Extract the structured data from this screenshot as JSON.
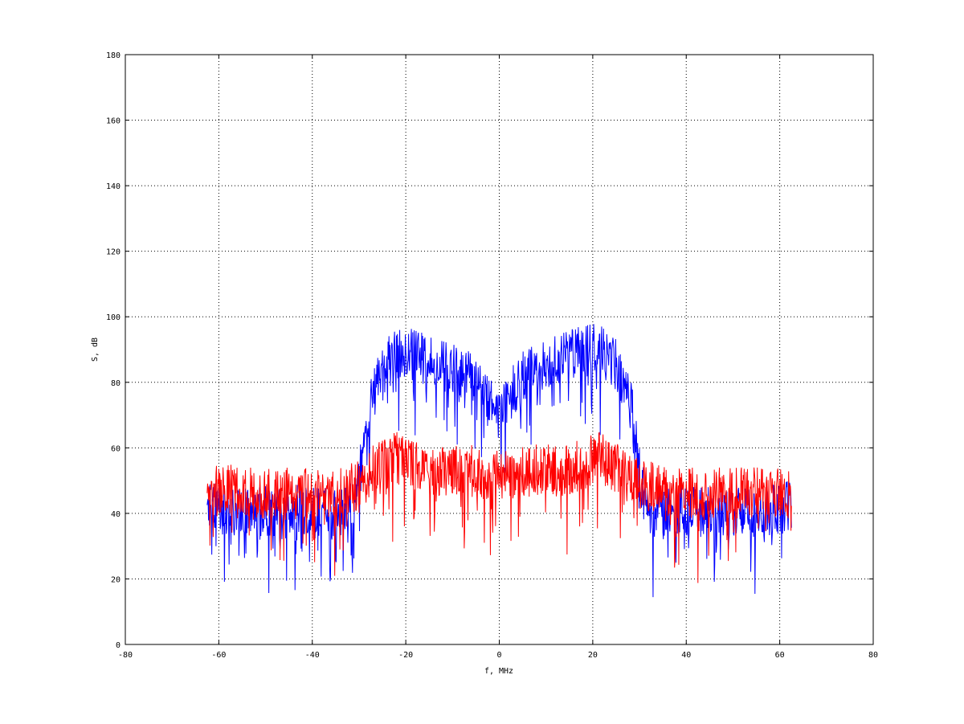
{
  "chart_data": {
    "type": "line",
    "title": "",
    "xlabel": "f, MHz",
    "ylabel": "S, dB",
    "xlim": [
      -80,
      80
    ],
    "ylim": [
      0,
      180
    ],
    "x_ticks": [
      -80,
      -60,
      -40,
      -20,
      0,
      20,
      40,
      60,
      80
    ],
    "y_ticks": [
      0,
      20,
      40,
      60,
      80,
      100,
      120,
      140,
      160,
      180
    ],
    "x_tick_labels": [
      "-80",
      "-60",
      "-40",
      "-20",
      "0",
      "20",
      "40",
      "60",
      "80"
    ],
    "y_tick_labels": [
      "0",
      "20",
      "40",
      "60",
      "80",
      "100",
      "120",
      "140",
      "160",
      "180"
    ],
    "grid": true,
    "x_range_of_data": [
      -62.5,
      62.5
    ],
    "series": [
      {
        "color": "#0000ff",
        "x": [
          -62,
          -58,
          -54,
          -50,
          -46,
          -42,
          -38,
          -34,
          -32,
          -31,
          -30,
          -29,
          -28,
          -27,
          -26,
          -25,
          -24,
          -22,
          -20,
          -18,
          -16,
          -14,
          -12,
          -10,
          -8,
          -6,
          -4,
          -2,
          0,
          1,
          2,
          4,
          6,
          8,
          10,
          12,
          14,
          16,
          18,
          20,
          22,
          24,
          25,
          26,
          27,
          28,
          29,
          30,
          31,
          32,
          34,
          38,
          42,
          46,
          50,
          54,
          58,
          62
        ],
        "values": [
          42,
          41,
          40,
          41,
          40,
          41,
          40,
          40,
          41,
          44,
          50,
          62,
          70,
          76,
          80,
          83,
          86,
          88,
          89,
          88,
          87,
          86,
          85,
          84,
          83,
          81,
          77,
          73,
          70,
          72,
          75,
          80,
          83,
          85,
          86,
          87,
          88,
          89,
          89,
          90,
          89,
          87,
          85,
          82,
          79,
          74,
          66,
          52,
          45,
          41,
          40,
          40,
          41,
          40,
          41,
          40,
          41,
          42
        ]
      },
      {
        "color": "#ff0000",
        "x": [
          -62,
          -58,
          -54,
          -50,
          -46,
          -42,
          -38,
          -34,
          -30,
          -28,
          -26,
          -24,
          -22,
          -20,
          -18,
          -16,
          -14,
          -12,
          -10,
          -8,
          -6,
          -4,
          -2,
          0,
          2,
          4,
          6,
          8,
          10,
          12,
          14,
          16,
          18,
          20,
          22,
          24,
          26,
          28,
          30,
          34,
          38,
          42,
          46,
          50,
          54,
          58,
          62
        ],
        "values": [
          47,
          47,
          46,
          46,
          46,
          46,
          46,
          46,
          49,
          52,
          54,
          55,
          57,
          56,
          54,
          53,
          53,
          53,
          53,
          54,
          53,
          52,
          52,
          51,
          52,
          52,
          53,
          53,
          53,
          53,
          53,
          54,
          55,
          56,
          57,
          55,
          53,
          51,
          49,
          47,
          46,
          46,
          46,
          46,
          46,
          47,
          47
        ]
      }
    ]
  }
}
